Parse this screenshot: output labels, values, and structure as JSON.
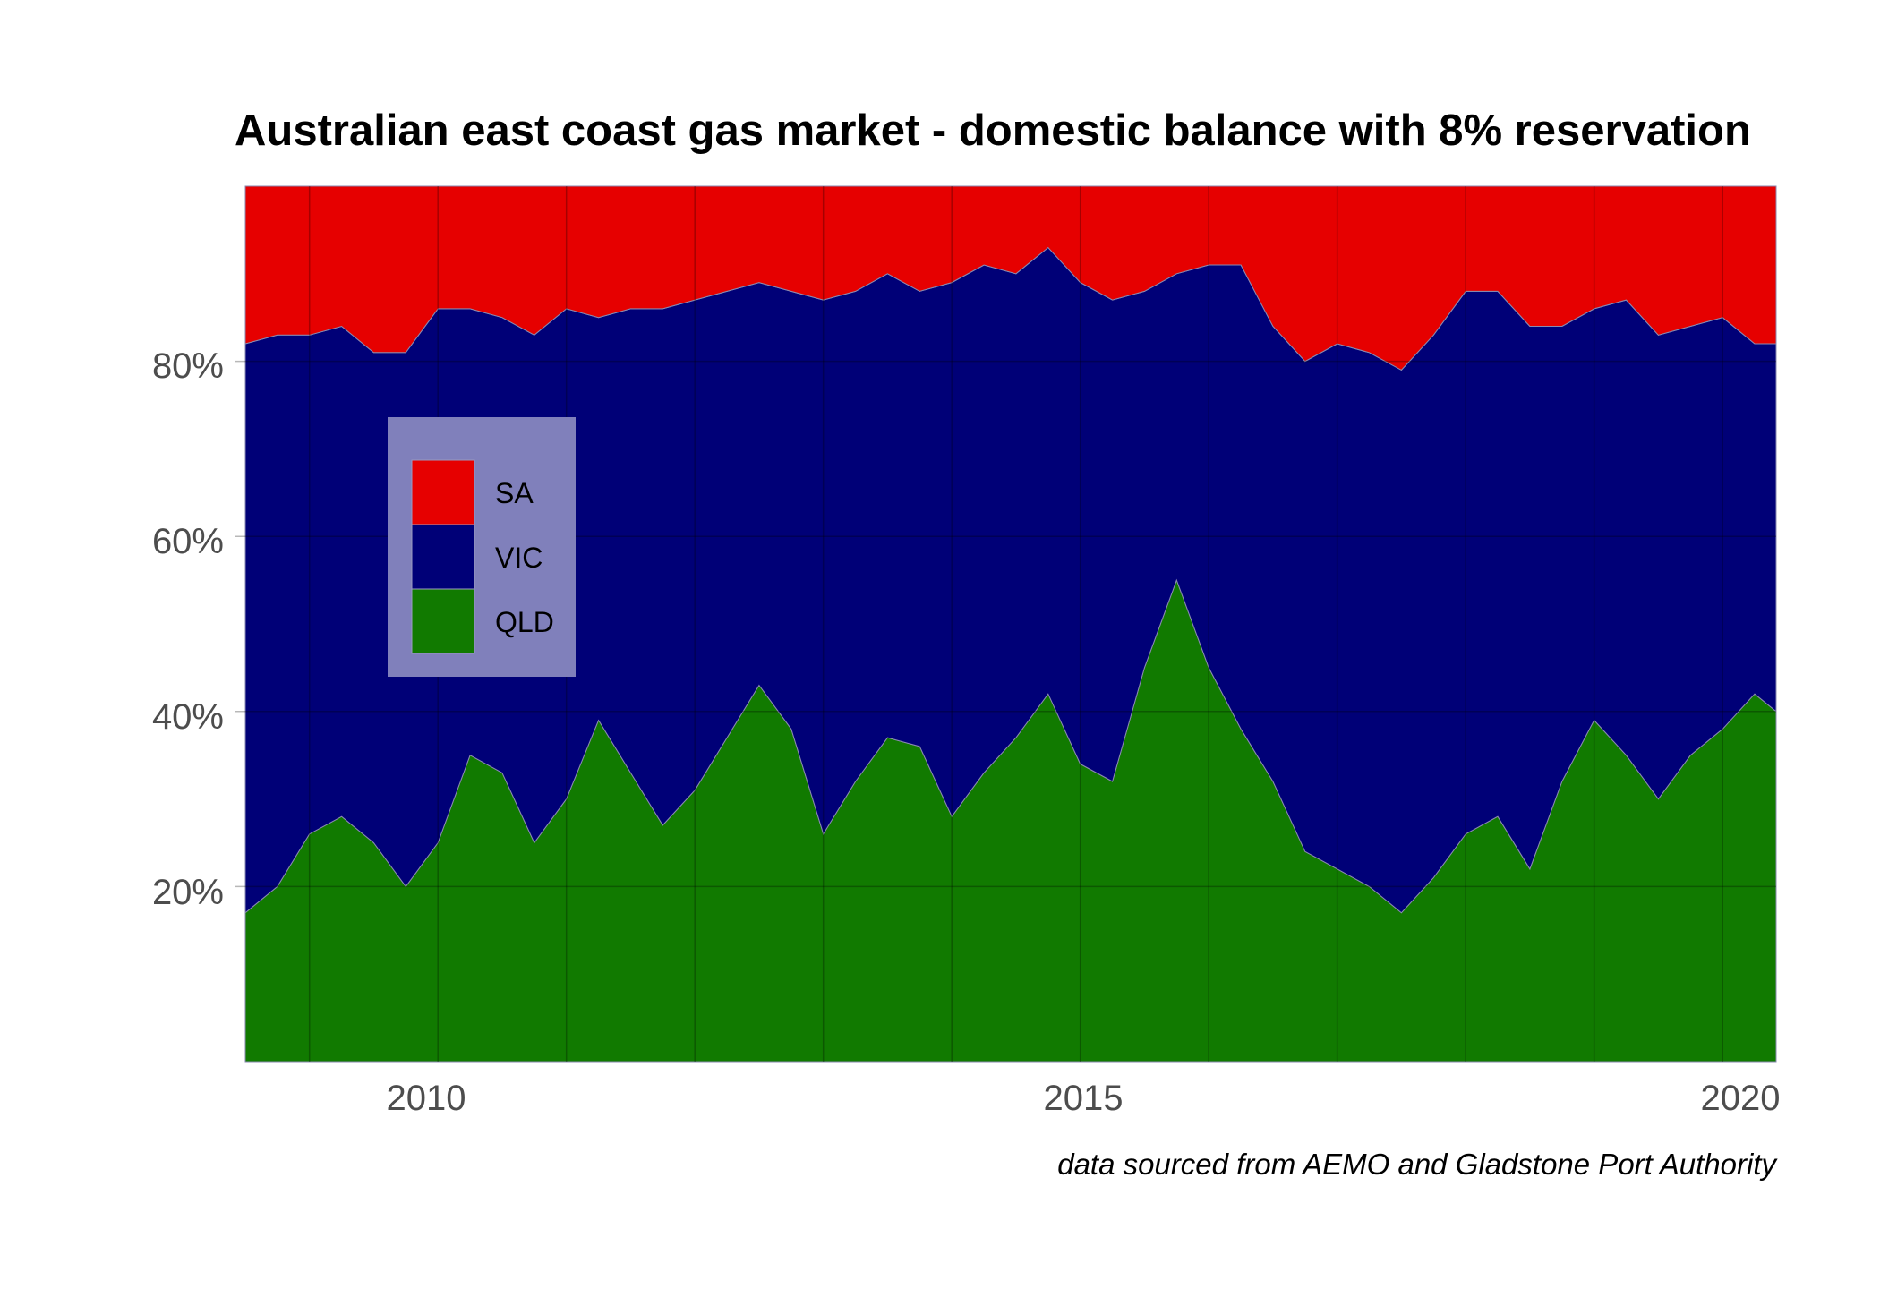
{
  "chart_data": {
    "type": "area",
    "stacked": true,
    "normalized": true,
    "title": "Australian east coast gas market - domestic balance with 8% reservation",
    "caption": "data sourced from AEMO and Gladstone Port Authority",
    "xlabel": "",
    "ylabel": "",
    "x_ticks": [
      "2010",
      "2015",
      "2020"
    ],
    "y_ticks": [
      "20%",
      "40%",
      "60%",
      "80%"
    ],
    "ylim": [
      0,
      1
    ],
    "grid": true,
    "legend_position": "top-left inside",
    "x": [
      "2008-07",
      "2008-10",
      "2009-01",
      "2009-04",
      "2009-07",
      "2009-10",
      "2010-01",
      "2010-04",
      "2010-07",
      "2010-10",
      "2011-01",
      "2011-04",
      "2011-07",
      "2011-10",
      "2012-01",
      "2012-04",
      "2012-07",
      "2012-10",
      "2013-01",
      "2013-04",
      "2013-07",
      "2013-10",
      "2014-01",
      "2014-04",
      "2014-07",
      "2014-10",
      "2015-01",
      "2015-04",
      "2015-07",
      "2015-10",
      "2016-01",
      "2016-04",
      "2016-07",
      "2016-10",
      "2017-01",
      "2017-04",
      "2017-07",
      "2017-10",
      "2018-01",
      "2018-04",
      "2018-07",
      "2018-10",
      "2019-01",
      "2019-04",
      "2019-07",
      "2019-10",
      "2020-01",
      "2020-04",
      "2020-06"
    ],
    "series": [
      {
        "name": "QLD",
        "color": "#117a00",
        "values": [
          0.17,
          0.2,
          0.26,
          0.28,
          0.25,
          0.2,
          0.25,
          0.35,
          0.33,
          0.25,
          0.3,
          0.39,
          0.33,
          0.27,
          0.31,
          0.37,
          0.43,
          0.38,
          0.26,
          0.32,
          0.37,
          0.36,
          0.28,
          0.33,
          0.37,
          0.42,
          0.34,
          0.32,
          0.45,
          0.55,
          0.45,
          0.38,
          0.32,
          0.24,
          0.22,
          0.2,
          0.17,
          0.21,
          0.26,
          0.28,
          0.22,
          0.32,
          0.39,
          0.35,
          0.3,
          0.35,
          0.38,
          0.42,
          0.4
        ]
      },
      {
        "name": "VIC",
        "color": "#000077",
        "values": [
          0.65,
          0.63,
          0.57,
          0.56,
          0.56,
          0.61,
          0.61,
          0.51,
          0.52,
          0.58,
          0.56,
          0.46,
          0.53,
          0.59,
          0.56,
          0.51,
          0.46,
          0.5,
          0.61,
          0.56,
          0.53,
          0.52,
          0.61,
          0.58,
          0.53,
          0.51,
          0.55,
          0.55,
          0.43,
          0.35,
          0.46,
          0.53,
          0.52,
          0.56,
          0.6,
          0.61,
          0.62,
          0.62,
          0.62,
          0.6,
          0.62,
          0.52,
          0.47,
          0.52,
          0.53,
          0.49,
          0.47,
          0.4,
          0.42
        ]
      },
      {
        "name": "SA",
        "color": "#e60000",
        "values": [
          0.18,
          0.17,
          0.17,
          0.16,
          0.19,
          0.19,
          0.14,
          0.14,
          0.15,
          0.17,
          0.14,
          0.15,
          0.14,
          0.14,
          0.13,
          0.12,
          0.11,
          0.12,
          0.13,
          0.12,
          0.1,
          0.12,
          0.11,
          0.09,
          0.1,
          0.07,
          0.11,
          0.13,
          0.12,
          0.1,
          0.09,
          0.09,
          0.16,
          0.2,
          0.18,
          0.19,
          0.21,
          0.17,
          0.12,
          0.12,
          0.16,
          0.16,
          0.14,
          0.13,
          0.17,
          0.16,
          0.15,
          0.18,
          0.18
        ]
      }
    ]
  },
  "legend": {
    "items": [
      {
        "label": "SA",
        "color": "#e60000"
      },
      {
        "label": "VIC",
        "color": "#000077"
      },
      {
        "label": "QLD",
        "color": "#117a00"
      }
    ]
  }
}
